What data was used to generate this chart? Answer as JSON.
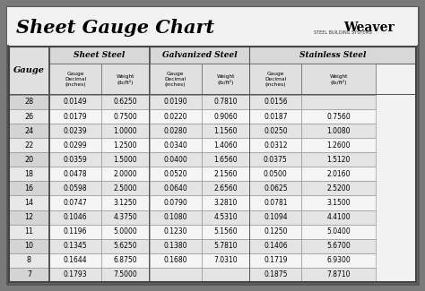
{
  "title": "Sheet Gauge Chart",
  "bg_outer": "#7a7a7a",
  "bg_inner": "#f0f0f0",
  "gauges": [
    28,
    26,
    24,
    22,
    20,
    18,
    16,
    14,
    12,
    11,
    10,
    8,
    7
  ],
  "sheet_steel": [
    [
      "0.0149",
      "0.6250"
    ],
    [
      "0.0179",
      "0.7500"
    ],
    [
      "0.0239",
      "1.0000"
    ],
    [
      "0.0299",
      "1.2500"
    ],
    [
      "0.0359",
      "1.5000"
    ],
    [
      "0.0478",
      "2.0000"
    ],
    [
      "0.0598",
      "2.5000"
    ],
    [
      "0.0747",
      "3.1250"
    ],
    [
      "0.1046",
      "4.3750"
    ],
    [
      "0.1196",
      "5.0000"
    ],
    [
      "0.1345",
      "5.6250"
    ],
    [
      "0.1644",
      "6.8750"
    ],
    [
      "0.1793",
      "7.5000"
    ]
  ],
  "galvanized_steel": [
    [
      "0.0190",
      "0.7810"
    ],
    [
      "0.0220",
      "0.9060"
    ],
    [
      "0.0280",
      "1.1560"
    ],
    [
      "0.0340",
      "1.4060"
    ],
    [
      "0.0400",
      "1.6560"
    ],
    [
      "0.0520",
      "2.1560"
    ],
    [
      "0.0640",
      "2.6560"
    ],
    [
      "0.0790",
      "3.2810"
    ],
    [
      "0.1080",
      "4.5310"
    ],
    [
      "0.1230",
      "5.1560"
    ],
    [
      "0.1380",
      "5.7810"
    ],
    [
      "0.1680",
      "7.0310"
    ],
    [
      "",
      ""
    ]
  ],
  "stainless_steel": [
    [
      "0.0156",
      ""
    ],
    [
      "0.0187",
      "0.7560"
    ],
    [
      "0.0250",
      "1.0080"
    ],
    [
      "0.0312",
      "1.2600"
    ],
    [
      "0.0375",
      "1.5120"
    ],
    [
      "0.0500",
      "2.0160"
    ],
    [
      "0.0625",
      "2.5200"
    ],
    [
      "0.0781",
      "3.1500"
    ],
    [
      "0.1094",
      "4.4100"
    ],
    [
      "0.1250",
      "5.0400"
    ],
    [
      "0.1406",
      "5.6700"
    ],
    [
      "0.1719",
      "6.9300"
    ],
    [
      "0.1875",
      "7.8710"
    ]
  ],
  "row_even_gauge_bg": "#d0d0d0",
  "row_odd_gauge_bg": "#e8e8e8",
  "row_even_data_bg": "#e8e8e8",
  "row_odd_data_bg": "#f5f5f5",
  "header_section_bg": "#c8c8c8",
  "header_sub_bg": "#e0e0e0",
  "gauge_col_bg": "#e8e8e8"
}
